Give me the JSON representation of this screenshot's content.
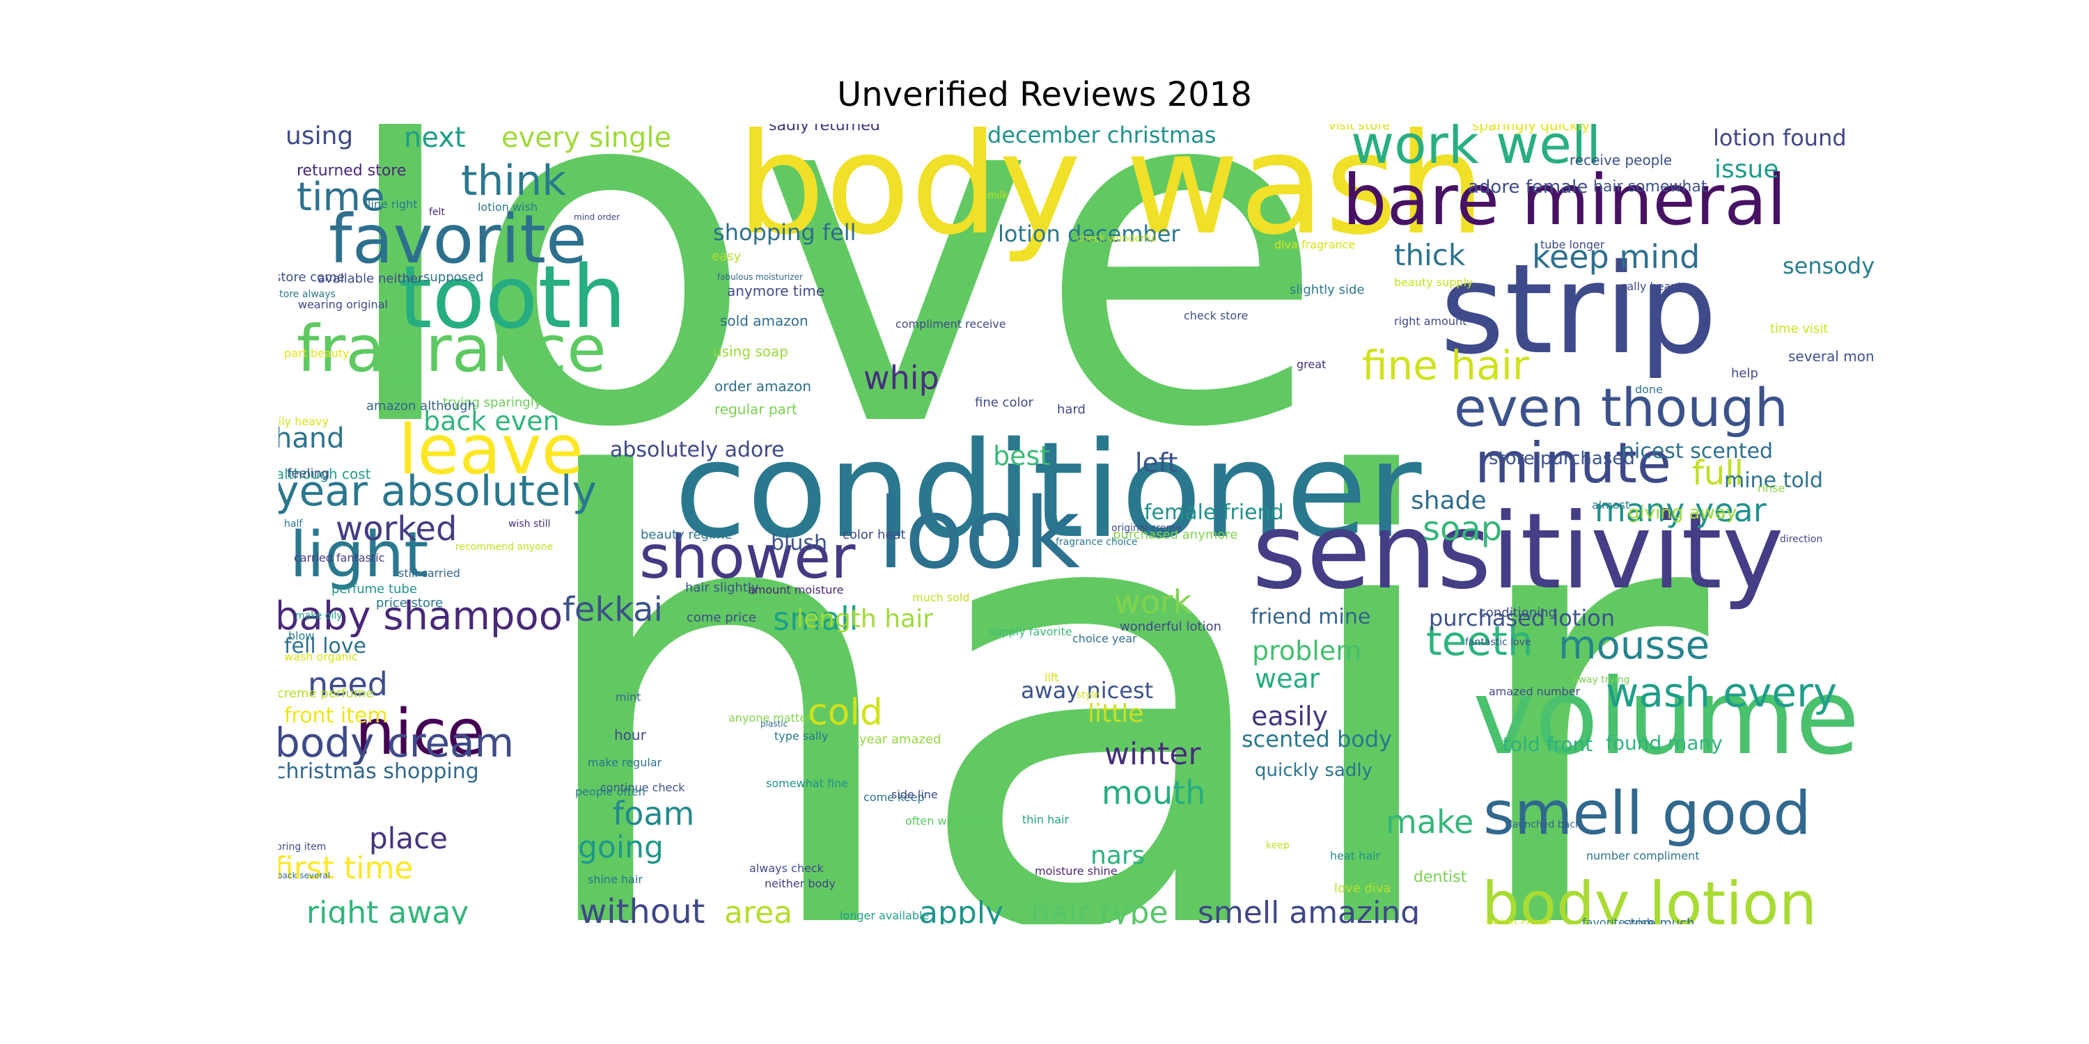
{
  "title": "Unverified Reviews 2018",
  "words": [
    {
      "text": "hair",
      "color": "#62c962"
    },
    {
      "text": "love",
      "color": "#62c962"
    },
    {
      "text": "body wash",
      "color": "#f0e027"
    },
    {
      "text": "conditioner",
      "color": "#2a788e"
    },
    {
      "text": "strip",
      "color": "#3f4a8a"
    },
    {
      "text": "volume",
      "color": "#4ac16d"
    },
    {
      "text": "sensitivity",
      "color": "#433e85"
    },
    {
      "text": "bare mineral",
      "color": "#471164"
    },
    {
      "text": "look",
      "color": "#2c718e"
    },
    {
      "text": "tooth",
      "color": "#26ad81"
    },
    {
      "text": "favorite",
      "color": "#2d708e"
    },
    {
      "text": "fragrance",
      "color": "#5ec962"
    },
    {
      "text": "work well",
      "color": "#29af7f"
    },
    {
      "text": "even though",
      "color": "#3b528b"
    },
    {
      "text": "minute",
      "color": "#3e4989"
    },
    {
      "text": "shower",
      "color": "#443983"
    },
    {
      "text": "light",
      "color": "#2a788e"
    },
    {
      "text": "leave",
      "color": "#fde725"
    },
    {
      "text": "nice",
      "color": "#440154"
    },
    {
      "text": "smell good",
      "color": "#31688e"
    },
    {
      "text": "body lotion",
      "color": "#a8db34"
    },
    {
      "text": "year absolutely",
      "color": "#2a778e"
    },
    {
      "text": "baby shampoo",
      "color": "#482979"
    },
    {
      "text": "body cream",
      "color": "#3e4a89"
    },
    {
      "text": "think",
      "color": "#2a788e"
    },
    {
      "text": "time",
      "color": "#2d718e"
    },
    {
      "text": "mousse",
      "color": "#25848e"
    },
    {
      "text": "wash every",
      "color": "#1f9e89"
    },
    {
      "text": "fine hair",
      "color": "#d0e11c"
    },
    {
      "text": "whip",
      "color": "#472f7d"
    },
    {
      "text": "fekkai",
      "color": "#3b528b"
    },
    {
      "text": "teeth",
      "color": "#2eb37c"
    },
    {
      "text": "soap",
      "color": "#35b779"
    },
    {
      "text": "small",
      "color": "#1fa187"
    },
    {
      "text": "work",
      "color": "#81d34d"
    },
    {
      "text": "worked",
      "color": "#433d84"
    },
    {
      "text": "cold",
      "color": "#d2e21b"
    },
    {
      "text": "keep mind",
      "color": "#2d708e"
    },
    {
      "text": "thick",
      "color": "#2c728e"
    },
    {
      "text": "mouth",
      "color": "#25ac82"
    },
    {
      "text": "make",
      "color": "#34b679"
    },
    {
      "text": "winter",
      "color": "#472d7b"
    },
    {
      "text": "foam",
      "color": "#23898e"
    },
    {
      "text": "going",
      "color": "#1f988b"
    },
    {
      "text": "apply",
      "color": "#1f958b"
    },
    {
      "text": "without",
      "color": "#3f4889"
    },
    {
      "text": "area",
      "color": "#b5de2b"
    },
    {
      "text": "hair type",
      "color": "#56c667"
    },
    {
      "text": "smell amazing",
      "color": "#3f4788"
    },
    {
      "text": "right away",
      "color": "#32b67a"
    },
    {
      "text": "first time",
      "color": "#fde725"
    },
    {
      "text": "place",
      "color": "#46337e"
    },
    {
      "text": "need",
      "color": "#3e4c8a"
    },
    {
      "text": "hand",
      "color": "#2c738e"
    },
    {
      "text": "back even",
      "color": "#31b57b"
    },
    {
      "text": "best",
      "color": "#3bbb75"
    },
    {
      "text": "left",
      "color": "#3a538b"
    },
    {
      "text": "many year",
      "color": "#20928c"
    },
    {
      "text": "full",
      "color": "#c0df25"
    },
    {
      "text": "next",
      "color": "#1f9e89"
    },
    {
      "text": "every single",
      "color": "#9fda3a"
    },
    {
      "text": "using",
      "color": "#3e4a89"
    },
    {
      "text": "issue",
      "color": "#1e9b8a"
    },
    {
      "text": "lotion found",
      "color": "#404588"
    },
    {
      "text": "sensodyne",
      "color": "#277f8e"
    },
    {
      "text": "december christmas",
      "color": "#20928c"
    },
    {
      "text": "lotion december",
      "color": "#2a778e"
    },
    {
      "text": "shopping fell",
      "color": "#2e6e8e"
    },
    {
      "text": "absolutely adore",
      "color": "#3e4989"
    },
    {
      "text": "length hair",
      "color": "#a0da39"
    },
    {
      "text": "blush",
      "color": "#3a538b"
    },
    {
      "text": "shade",
      "color": "#2f6c8e"
    },
    {
      "text": "easily",
      "color": "#46337f"
    },
    {
      "text": "wear",
      "color": "#26ad81"
    },
    {
      "text": "problem",
      "color": "#44bf70"
    },
    {
      "text": "little",
      "color": "#cae11f"
    },
    {
      "text": "nars",
      "color": "#2db27d"
    },
    {
      "text": "christmas shopping",
      "color": "#31678e"
    },
    {
      "text": "front item",
      "color": "#f1e51d"
    },
    {
      "text": "fell love",
      "color": "#2d708e"
    },
    {
      "text": "away nicest",
      "color": "#3b528b"
    },
    {
      "text": "scented body",
      "color": "#2a778e"
    },
    {
      "text": "purchased lotion",
      "color": "#3b528b"
    },
    {
      "text": "female friend",
      "color": "#21918c"
    },
    {
      "text": "friend mine",
      "color": "#33638d"
    },
    {
      "text": "told front",
      "color": "#2db27d"
    },
    {
      "text": "found many",
      "color": "#2fb47c"
    },
    {
      "text": "nicest scented",
      "color": "#2e6f8e"
    },
    {
      "text": "mine told",
      "color": "#2d718e"
    },
    {
      "text": "store purchased",
      "color": "#3b528b"
    },
    {
      "text": "giving away",
      "color": "#a0da39"
    },
    {
      "text": "adore female",
      "color": "#3e4c8a"
    },
    {
      "text": "quickly sadly",
      "color": "#2c738e"
    },
    {
      "text": "returned store",
      "color": "#482576"
    },
    {
      "text": "sadly returned",
      "color": "#46327e"
    },
    {
      "text": "anymore time",
      "color": "#3e4c8a"
    },
    {
      "text": "sold amazon",
      "color": "#2f6c8e"
    },
    {
      "text": "using soap",
      "color": "#9bd93c"
    },
    {
      "text": "order amazon",
      "color": "#2e6f8e"
    },
    {
      "text": "regular part",
      "color": "#7ad151"
    },
    {
      "text": "fine color",
      "color": "#3e4a89"
    },
    {
      "text": "trying sparingly",
      "color": "#6ccd5a"
    },
    {
      "text": "amazon although",
      "color": "#33638d"
    },
    {
      "text": "beauty regime",
      "color": "#2c738e"
    },
    {
      "text": "color heat",
      "color": "#3f4788"
    },
    {
      "text": "purchased anymore",
      "color": "#7fd34e"
    },
    {
      "text": "although cost",
      "color": "#1f9e89"
    },
    {
      "text": "hair slightly",
      "color": "#3b528b"
    },
    {
      "text": "amount moisture",
      "color": "#482576"
    },
    {
      "text": "much sold",
      "color": "#c2df23"
    },
    {
      "text": "come price",
      "color": "#3e4a89"
    },
    {
      "text": "wonderful lotion",
      "color": "#3f4889"
    },
    {
      "text": "choice year",
      "color": "#2e6e8e"
    },
    {
      "text": "supply favorite",
      "color": "#3bbb75"
    },
    {
      "text": "fragrance choice",
      "color": "#2a788e"
    },
    {
      "text": "original creme",
      "color": "#3e4a89"
    },
    {
      "text": "recommend anyone",
      "color": "#c5e021"
    },
    {
      "text": "wish still",
      "color": "#46307e"
    },
    {
      "text": "half",
      "color": "#2c728e"
    },
    {
      "text": "carried fantastic",
      "color": "#433d84"
    },
    {
      "text": "still carried",
      "color": "#33638d"
    },
    {
      "text": "price store",
      "color": "#2b758e"
    },
    {
      "text": "perfume tube",
      "color": "#21918c"
    },
    {
      "text": "make oily",
      "color": "#1f9f88"
    },
    {
      "text": "creme perfume",
      "color": "#b2dd2d"
    },
    {
      "text": "wash organic",
      "color": "#d8e219"
    },
    {
      "text": "blow",
      "color": "#287c8e"
    },
    {
      "text": "mint",
      "color": "#32658e"
    },
    {
      "text": "anyone matter",
      "color": "#84d44b"
    },
    {
      "text": "hour",
      "color": "#3e4a89"
    },
    {
      "text": "type sally",
      "color": "#2a768e"
    },
    {
      "text": "year amazed",
      "color": "#95d840"
    },
    {
      "text": "lift",
      "color": "#d8e219"
    },
    {
      "text": "make regular",
      "color": "#2c738e"
    },
    {
      "text": "continue check",
      "color": "#3a538b"
    },
    {
      "text": "plastic",
      "color": "#2e6f8e"
    },
    {
      "text": "style",
      "color": "#d5e21a"
    },
    {
      "text": "come keep",
      "color": "#2c738e"
    },
    {
      "text": "people often",
      "color": "#2a788e"
    },
    {
      "text": "somewhat fine",
      "color": "#21918c"
    },
    {
      "text": "side line",
      "color": "#3e4989"
    },
    {
      "text": "often wearing",
      "color": "#5ac864"
    },
    {
      "text": "thin hair",
      "color": "#1fa188"
    },
    {
      "text": "always check",
      "color": "#3e4a89"
    },
    {
      "text": "neither body",
      "color": "#433e85"
    },
    {
      "text": "shine hair",
      "color": "#2d718e"
    },
    {
      "text": "longer available",
      "color": "#1f9e89"
    },
    {
      "text": "moisture shine",
      "color": "#482878"
    },
    {
      "text": "bring item",
      "color": "#3e4a89"
    },
    {
      "text": "back several",
      "color": "#2e6e8e"
    },
    {
      "text": "launched back",
      "color": "#33638d"
    },
    {
      "text": "keep",
      "color": "#c2df23"
    },
    {
      "text": "heat hair",
      "color": "#21918c"
    },
    {
      "text": "dentist",
      "color": "#7ad151"
    },
    {
      "text": "love diva",
      "color": "#b8de29"
    },
    {
      "text": "number compliment",
      "color": "#2c728e"
    },
    {
      "text": "lotion come",
      "color": "#d0e11c"
    },
    {
      "text": "favorite wish",
      "color": "#2c738e"
    },
    {
      "text": "store much",
      "color": "#31688e"
    },
    {
      "text": "amazed number",
      "color": "#3e4a89"
    },
    {
      "text": "away trying",
      "color": "#7ad151"
    },
    {
      "text": "fantastic love",
      "color": "#3b528b"
    },
    {
      "text": "conditioning",
      "color": "#3e4a89"
    },
    {
      "text": "almost",
      "color": "#2a788e"
    },
    {
      "text": "direction",
      "color": "#3e4989"
    },
    {
      "text": "rinse",
      "color": "#8ed645"
    },
    {
      "text": "time visit",
      "color": "#cde11d"
    },
    {
      "text": "several month",
      "color": "#3b528b"
    },
    {
      "text": "help",
      "color": "#3e4a89"
    },
    {
      "text": "done",
      "color": "#2c738e"
    },
    {
      "text": "great",
      "color": "#46307e"
    },
    {
      "text": "right amount",
      "color": "#3e4a89"
    },
    {
      "text": "check store",
      "color": "#3b528b"
    },
    {
      "text": "beauty supply",
      "color": "#c8e020"
    },
    {
      "text": "slightly side",
      "color": "#2a788e"
    },
    {
      "text": "sally beauty",
      "color": "#3e4a89"
    },
    {
      "text": "tube longer",
      "color": "#3e4a89"
    },
    {
      "text": "diva fragrance",
      "color": "#d8e219"
    },
    {
      "text": "check wonderful",
      "color": "#c2df23"
    },
    {
      "text": "visit store",
      "color": "#d5e21a"
    },
    {
      "text": "sparingly quickly",
      "color": "#e2e418"
    },
    {
      "text": "receive people",
      "color": "#3b528b"
    },
    {
      "text": "hair somewhat",
      "color": "#3b528b"
    },
    {
      "text": "milk",
      "color": "#c2df23"
    },
    {
      "text": "line right",
      "color": "#2c738e"
    },
    {
      "text": "lotion wish",
      "color": "#2a788e"
    },
    {
      "text": "felt",
      "color": "#482576"
    },
    {
      "text": "mind order",
      "color": "#3e4a89"
    },
    {
      "text": "store come",
      "color": "#3b528b"
    },
    {
      "text": "available neither",
      "color": "#3e4a89"
    },
    {
      "text": "supposed",
      "color": "#2c738e"
    },
    {
      "text": "store always",
      "color": "#2a788e"
    },
    {
      "text": "wearing original",
      "color": "#3e4a89"
    },
    {
      "text": "easy",
      "color": "#b5de2b"
    },
    {
      "text": "fabulous moisturizer",
      "color": "#31688e"
    },
    {
      "text": "compliment receive",
      "color": "#3e4a89"
    },
    {
      "text": "part beauty",
      "color": "#e2e418"
    },
    {
      "text": "oily heavy",
      "color": "#d8e219"
    },
    {
      "text": "feeling",
      "color": "#3e4a89"
    },
    {
      "text": "hard",
      "color": "#3e4a89"
    }
  ]
}
